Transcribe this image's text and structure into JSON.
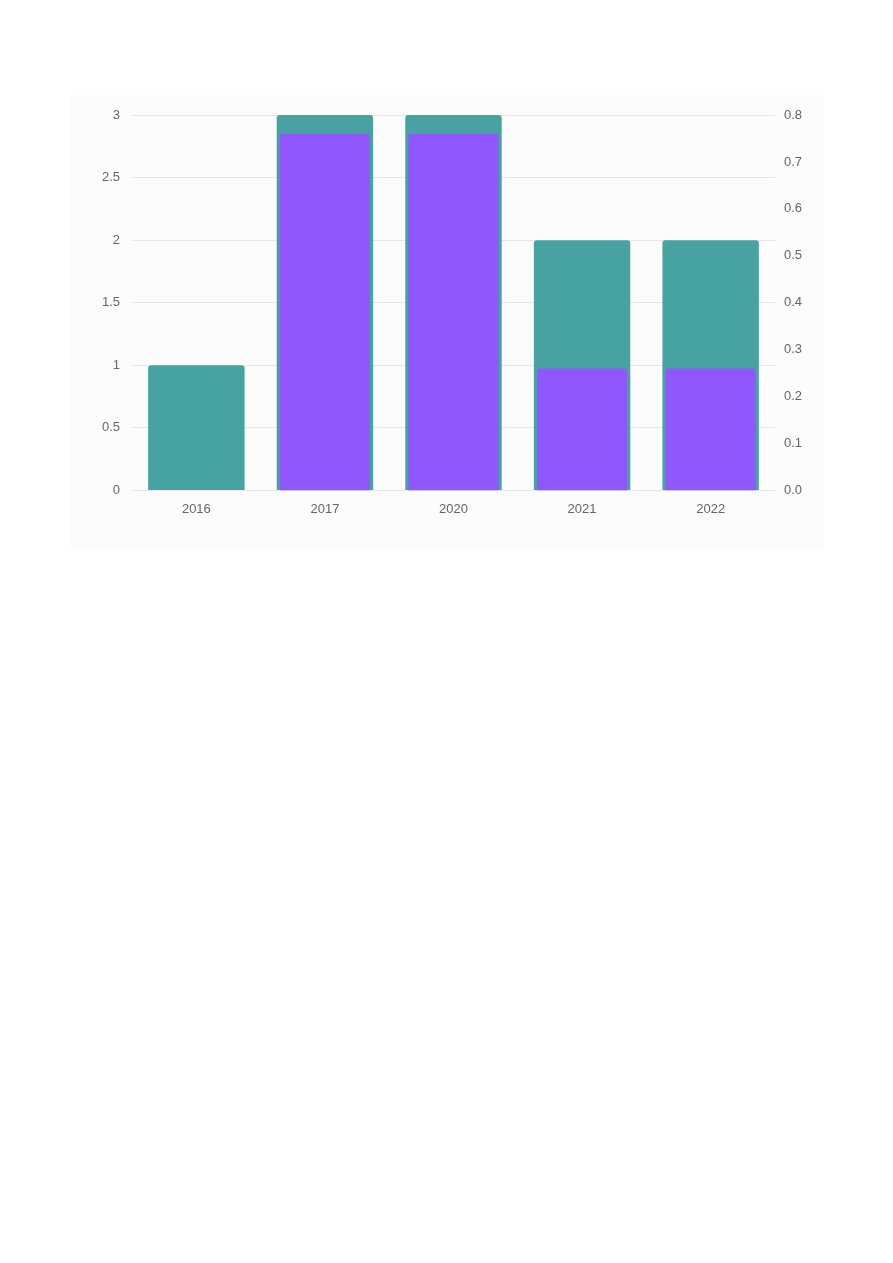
{
  "chart_data": {
    "type": "bar",
    "categories": [
      "2016",
      "2017",
      "2020",
      "2021",
      "2022"
    ],
    "series": [
      {
        "color": "#47a2a2",
        "values": [
          1,
          3,
          3,
          2,
          2
        ]
      },
      {
        "color": "#8f57fd",
        "values": [
          null,
          0.76,
          0.76,
          0.26,
          0.26
        ],
        "axis": "y2"
      }
    ],
    "ylim": [
      0,
      3
    ],
    "yticks": [
      0,
      0.5,
      1,
      1.5,
      2,
      2.5,
      3
    ],
    "y2lim": [
      0,
      0.8
    ],
    "y2ticks": [
      {
        "value": 0,
        "label": "0.0"
      },
      0.1,
      0.2,
      0.3,
      0.4,
      0.5,
      0.6,
      0.7,
      0.8
    ],
    "grid": "y",
    "legend": false
  }
}
